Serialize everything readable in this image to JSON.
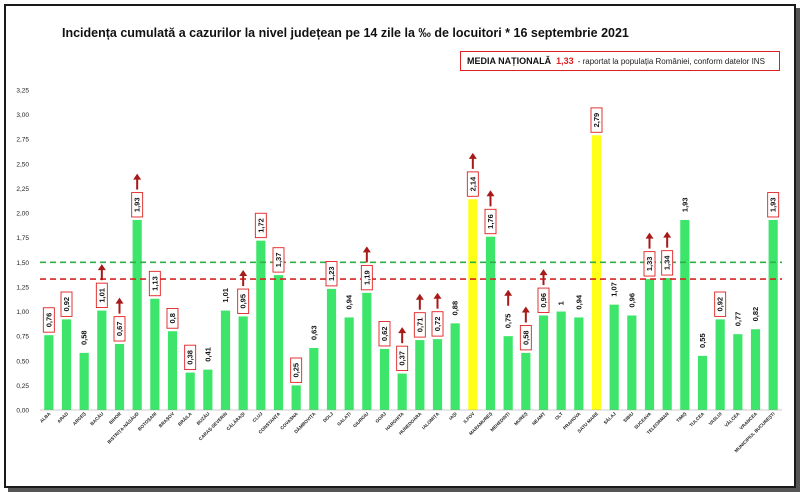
{
  "title": "Incidența cumulată a cazurilor la nivel județean pe 14 zile la ‰ de locuitori * 16 septembrie 2021",
  "media_box": {
    "label": "MEDIA NAȚIONALĂ",
    "value": "1,33",
    "note": "- raportat la populația României, conform datelor INS"
  },
  "colors": {
    "bar_green": "#3de66a",
    "bar_yellow": "#ffff1a",
    "line_green": "#2fae4a",
    "line_red": "#d62424",
    "arrow_red": "#a81a1a",
    "label_border": "#e02020"
  },
  "chart_data": {
    "type": "bar",
    "title": "Incidența cumulată a cazurilor la nivel județean pe 14 zile la ‰ de locuitori * 16 septembrie 2021",
    "ylim": [
      0,
      3.25
    ],
    "yticks": [
      "0,00",
      "0,25",
      "0,50",
      "0,75",
      "1,00",
      "1,25",
      "1,50",
      "1,75",
      "2,00",
      "2,25",
      "2,50",
      "2,75",
      "3,00",
      "3,25"
    ],
    "grid": false,
    "reference_lines": [
      {
        "value": 1.5,
        "color": "green",
        "style": "dashed"
      },
      {
        "value": 1.33,
        "color": "red",
        "style": "dashed"
      }
    ],
    "categories": [
      "ALBA",
      "ARAD",
      "ARGEȘ",
      "BACĂU",
      "BIHOR",
      "BISTRIȚA-NĂSĂUD",
      "BOTOȘANI",
      "BRAȘOV",
      "BRĂILA",
      "BUZĂU",
      "CARAȘ-SEVERIN",
      "CĂLĂRAȘI",
      "CLUJ",
      "CONSTANȚA",
      "COVASNA",
      "DÂMBOVIȚA",
      "DOLJ",
      "GALAȚI",
      "GIURGIU",
      "GORJ",
      "HARGHITA",
      "HUNEDOARA",
      "IALOMIȚA",
      "IAȘI",
      "ILFOV",
      "MARAMUREȘ",
      "MEHEDINȚI",
      "MUREȘ",
      "NEAMȚ",
      "OLT",
      "PRAHOVA",
      "SATU MARE",
      "SĂLAJ",
      "SIBIU",
      "SUCEAVA",
      "TELEORMAN",
      "TIMIȘ",
      "TULCEA",
      "VASLUI",
      "VÂLCEA",
      "VRANCEA",
      "MUNICIPIUL BUCUREȘTI"
    ],
    "values": [
      0.76,
      0.92,
      0.58,
      1.01,
      0.67,
      1.93,
      1.13,
      0.8,
      0.38,
      0.41,
      1.01,
      0.95,
      1.72,
      1.37,
      0.25,
      0.63,
      1.23,
      0.94,
      1.19,
      0.62,
      0.37,
      0.71,
      0.72,
      0.88,
      2.14,
      1.76,
      0.75,
      0.58,
      0.96,
      1,
      0.94,
      2.79,
      1.07,
      0.96,
      1.33,
      1.34,
      1.93,
      0.55,
      0.92,
      0.77,
      0.82,
      1.93
    ],
    "value_labels": [
      "0,76",
      "0,92",
      "0,58",
      "1,01",
      "0,67",
      "1,93",
      "1,13",
      "0,8",
      "0,38",
      "0,41",
      "1,01",
      "0,95",
      "1,72",
      "1,37",
      "0,25",
      "0,63",
      "1,23",
      "0,94",
      "1,19",
      "0,62",
      "0,37",
      "0,71",
      "0,72",
      "0,88",
      "2,14",
      "1,76",
      "0,75",
      "0,58",
      "0,96",
      "1",
      "0,94",
      "2,79",
      "1,07",
      "0,96",
      "1,33",
      "1,34",
      "1,93",
      "0,55",
      "0,92",
      "0,77",
      "0,82",
      "1,93"
    ],
    "highlight_yellow": [
      "ILFOV",
      "SATU MARE"
    ],
    "boxed_labels": [
      "ALBA",
      "ARAD",
      "BACĂU",
      "BIHOR",
      "BISTRIȚA-NĂSĂUD",
      "BOTOȘANI",
      "BRAȘOV",
      "BRĂILA",
      "CĂLĂRAȘI",
      "CLUJ",
      "CONSTANȚA",
      "COVASNA",
      "DOLJ",
      "GIURGIU",
      "GORJ",
      "HARGHITA",
      "HUNEDOARA",
      "IALOMIȚA",
      "ILFOV",
      "MARAMUREȘ",
      "MUREȘ",
      "NEAMȚ",
      "SATU MARE",
      "SUCEAVA",
      "TELEORMAN",
      "VASLUI",
      "MUNICIPIUL BUCUREȘTI"
    ],
    "up_arrows": [
      "BACĂU",
      "BIHOR",
      "BISTRIȚA-NĂSĂUD",
      "CĂLĂRAȘI",
      "GIURGIU",
      "HARGHITA",
      "HUNEDOARA",
      "IALOMIȚA",
      "ILFOV",
      "MARAMUREȘ",
      "MEHEDINȚI",
      "MUREȘ",
      "NEAMȚ",
      "SUCEAVA",
      "TELEORMAN"
    ]
  }
}
